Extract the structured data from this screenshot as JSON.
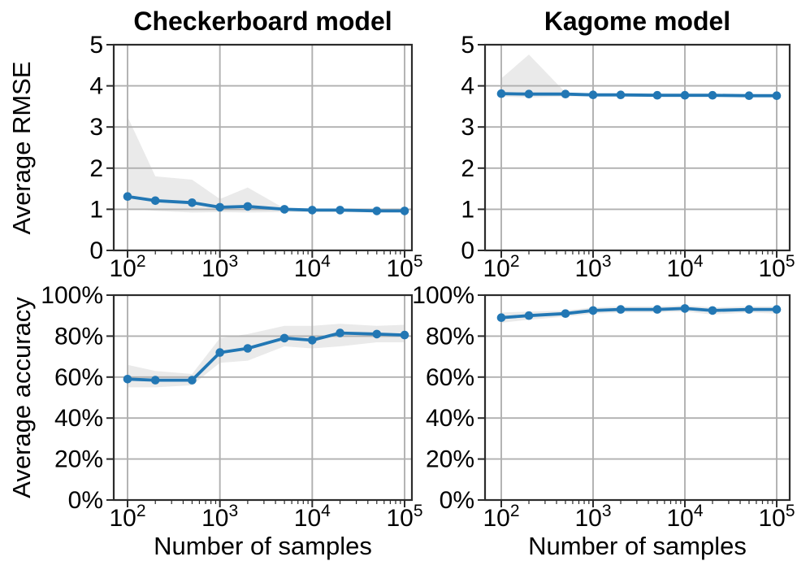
{
  "figure": {
    "background_color": "#ffffff",
    "line_color": "#2277b4",
    "marker_color": "#2277b4",
    "band_color": "#dcdcdc",
    "band_opacity": 0.6,
    "grid_color": "#b0b0b0",
    "spine_color": "#2b2b2b",
    "text_color": "#000000"
  },
  "chart_data": [
    {
      "id": "checkerboard-rmse",
      "type": "line",
      "title": "Checkerboard model",
      "ylabel": "Average RMSE",
      "xlabel": "",
      "xscale": "log",
      "xlim": [
        100,
        100000
      ],
      "ylim": [
        0,
        5
      ],
      "grid": true,
      "legend": "none",
      "x": [
        100,
        200,
        500,
        1000,
        2000,
        5000,
        10000,
        20000,
        50000,
        100000
      ],
      "y": [
        1.31,
        1.21,
        1.16,
        1.05,
        1.07,
        1.0,
        0.98,
        0.98,
        0.96,
        0.96
      ],
      "band_lower": [
        1.02,
        0.96,
        0.92,
        0.93,
        0.92,
        0.93,
        0.93,
        0.93,
        0.92,
        0.92
      ],
      "band_upper": [
        3.25,
        1.8,
        1.72,
        1.25,
        1.53,
        1.02,
        1.0,
        0.99,
        0.98,
        0.98
      ],
      "yticks": [
        0,
        1,
        2,
        3,
        4,
        5
      ],
      "ytick_labels": [
        "0",
        "1",
        "2",
        "3",
        "4",
        "5"
      ],
      "xticks": [
        100,
        1000,
        10000,
        100000
      ],
      "xtick_labels": [
        {
          "base": "10",
          "exp": "2"
        },
        {
          "base": "10",
          "exp": "3"
        },
        {
          "base": "10",
          "exp": "4"
        },
        {
          "base": "10",
          "exp": "5"
        }
      ]
    },
    {
      "id": "kagome-rmse",
      "type": "line",
      "title": "Kagome model",
      "ylabel": "",
      "xlabel": "",
      "xscale": "log",
      "xlim": [
        100,
        100000
      ],
      "ylim": [
        0,
        5
      ],
      "grid": true,
      "legend": "none",
      "x": [
        100,
        200,
        500,
        1000,
        2000,
        5000,
        10000,
        20000,
        50000,
        100000
      ],
      "y": [
        3.81,
        3.8,
        3.8,
        3.78,
        3.78,
        3.77,
        3.77,
        3.77,
        3.76,
        3.76
      ],
      "band_lower": [
        3.74,
        3.72,
        3.74,
        3.74,
        3.74,
        3.73,
        3.73,
        3.73,
        3.72,
        3.72
      ],
      "band_upper": [
        4.18,
        4.76,
        3.84,
        3.81,
        3.81,
        3.8,
        3.8,
        3.8,
        3.79,
        3.79
      ],
      "yticks": [
        0,
        1,
        2,
        3,
        4,
        5
      ],
      "ytick_labels": [
        "0",
        "1",
        "2",
        "3",
        "4",
        "5"
      ],
      "xticks": [
        100,
        1000,
        10000,
        100000
      ],
      "xtick_labels": [
        {
          "base": "10",
          "exp": "2"
        },
        {
          "base": "10",
          "exp": "3"
        },
        {
          "base": "10",
          "exp": "4"
        },
        {
          "base": "10",
          "exp": "5"
        }
      ]
    },
    {
      "id": "checkerboard-accuracy",
      "type": "line",
      "title": "",
      "ylabel": "Average accuracy",
      "xlabel": "Number of samples",
      "xscale": "log",
      "xlim": [
        100,
        100000
      ],
      "ylim": [
        0,
        100
      ],
      "grid": true,
      "legend": "none",
      "x": [
        100,
        200,
        500,
        1000,
        2000,
        5000,
        10000,
        20000,
        50000,
        100000
      ],
      "y": [
        59,
        58.5,
        58.5,
        72,
        74,
        79,
        78,
        81.5,
        81,
        80.5
      ],
      "band_lower": [
        55,
        55,
        56,
        67,
        68,
        75,
        74,
        75,
        77,
        77
      ],
      "band_upper": [
        66,
        63,
        61.5,
        79,
        81,
        85,
        85,
        86,
        85,
        85.5
      ],
      "yticks": [
        0,
        20,
        40,
        60,
        80,
        100
      ],
      "ytick_labels": [
        "0%",
        "20%",
        "40%",
        "60%",
        "80%",
        "100%"
      ],
      "xticks": [
        100,
        1000,
        10000,
        100000
      ],
      "xtick_labels": [
        {
          "base": "10",
          "exp": "2"
        },
        {
          "base": "10",
          "exp": "3"
        },
        {
          "base": "10",
          "exp": "4"
        },
        {
          "base": "10",
          "exp": "5"
        }
      ]
    },
    {
      "id": "kagome-accuracy",
      "type": "line",
      "title": "",
      "ylabel": "",
      "xlabel": "Number of samples",
      "xscale": "log",
      "xlim": [
        100,
        100000
      ],
      "ylim": [
        0,
        100
      ],
      "grid": true,
      "legend": "none",
      "x": [
        100,
        200,
        500,
        1000,
        2000,
        5000,
        10000,
        20000,
        50000,
        100000
      ],
      "y": [
        89,
        90,
        91,
        92.5,
        93,
        93,
        93.5,
        92.5,
        93,
        93
      ],
      "band_lower": [
        86.5,
        88,
        89.5,
        91,
        91.5,
        91.5,
        92,
        90.5,
        91.5,
        91
      ],
      "band_upper": [
        91.5,
        92,
        92.5,
        94,
        94.5,
        94.5,
        95,
        94,
        94.5,
        94.5
      ],
      "yticks": [
        0,
        20,
        40,
        60,
        80,
        100
      ],
      "ytick_labels": [
        "0%",
        "20%",
        "40%",
        "60%",
        "80%",
        "100%"
      ],
      "xticks": [
        100,
        1000,
        10000,
        100000
      ],
      "xtick_labels": [
        {
          "base": "10",
          "exp": "2"
        },
        {
          "base": "10",
          "exp": "3"
        },
        {
          "base": "10",
          "exp": "4"
        },
        {
          "base": "10",
          "exp": "5"
        }
      ]
    }
  ]
}
